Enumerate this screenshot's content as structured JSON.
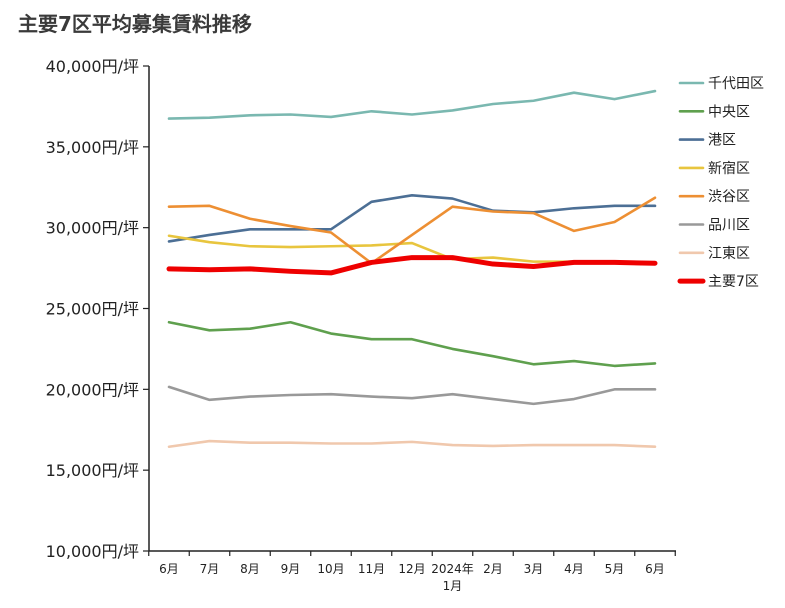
{
  "chart_data": {
    "type": "line",
    "title": "主要7区平均募集賃料推移",
    "xlabel": "",
    "ylabel": "",
    "categories": [
      "6月",
      "7月",
      "8月",
      "9月",
      "10月",
      "11月",
      "12月",
      "2024年1月",
      "2月",
      "3月",
      "4月",
      "5月",
      "6月"
    ],
    "y_tick_labels": [
      "10,000円/坪",
      "15,000円/坪",
      "20,000円/坪",
      "25,000円/坪",
      "30,000円/坪",
      "35,000円/坪",
      "40,000円/坪"
    ],
    "y_ticks": [
      10000,
      15000,
      20000,
      25000,
      30000,
      35000,
      40000
    ],
    "ylim": [
      10000,
      40000
    ],
    "grid": false,
    "legend_position": "right",
    "series": [
      {
        "name": "千代田区",
        "color": "#7ab8b0",
        "values": [
          36750,
          36800,
          36950,
          37000,
          36850,
          37200,
          37000,
          37250,
          37650,
          37850,
          38350,
          37950,
          38450
        ]
      },
      {
        "name": "中央区",
        "color": "#5fa04e",
        "values": [
          24150,
          23650,
          23750,
          24150,
          23450,
          23100,
          23100,
          22500,
          22050,
          21550,
          21750,
          21450,
          21600
        ]
      },
      {
        "name": "港区",
        "color": "#4c6f95",
        "values": [
          29150,
          29550,
          29900,
          29900,
          29900,
          31600,
          32000,
          31800,
          31050,
          30950,
          31200,
          31350,
          31350
        ]
      },
      {
        "name": "新宿区",
        "color": "#e8c53e",
        "values": [
          29500,
          29100,
          28850,
          28800,
          28850,
          28900,
          29050,
          28050,
          28150,
          27900,
          27900,
          27800,
          27800
        ]
      },
      {
        "name": "渋谷区",
        "color": "#ed8f33",
        "values": [
          31300,
          31350,
          30550,
          30100,
          29700,
          27800,
          29550,
          31300,
          31000,
          30900,
          29800,
          30350,
          31850
        ]
      },
      {
        "name": "品川区",
        "color": "#999999",
        "values": [
          20150,
          19350,
          19550,
          19650,
          19700,
          19550,
          19450,
          19700,
          19400,
          19100,
          19400,
          20000,
          20000
        ]
      },
      {
        "name": "江東区",
        "color": "#f0c8ad",
        "values": [
          16450,
          16800,
          16700,
          16700,
          16650,
          16650,
          16750,
          16550,
          16500,
          16550,
          16550,
          16550,
          16450
        ]
      },
      {
        "name": "主要7区",
        "color": "#ee0000",
        "bold": true,
        "values": [
          27450,
          27400,
          27450,
          27300,
          27200,
          27850,
          28150,
          28150,
          27750,
          27600,
          27850,
          27850,
          27800
        ]
      }
    ]
  }
}
